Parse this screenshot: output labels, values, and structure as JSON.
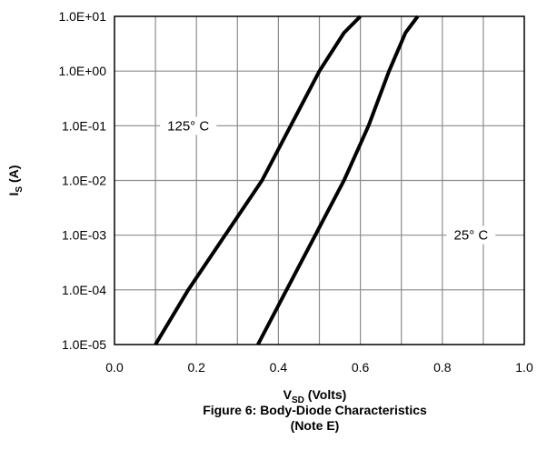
{
  "chart_data": {
    "type": "line",
    "title": "",
    "caption_lines": [
      "Figure 6: Body-Diode Characteristics",
      "(Note E)"
    ],
    "xlabel": {
      "main": "V",
      "sub": "SD",
      "rest": " (Volts)"
    },
    "ylabel": {
      "main": "I",
      "sub": "S",
      "rest": " (A)"
    },
    "xlim": [
      0.0,
      1.0
    ],
    "y_scale": "log",
    "ylim": [
      1e-05,
      10
    ],
    "x_ticks": [
      0.0,
      0.2,
      0.4,
      0.6,
      0.8,
      1.0
    ],
    "x_tick_labels": [
      "0.0",
      "0.2",
      "0.4",
      "0.6",
      "0.8",
      "1.0"
    ],
    "y_ticks": [
      1e-05,
      0.0001,
      0.001,
      0.01,
      0.1,
      1,
      10
    ],
    "y_tick_labels": [
      "1.0E-05",
      "1.0E-04",
      "1.0E-03",
      "1.0E-02",
      "1.0E-01",
      "1.0E+00",
      "1.0E+01"
    ],
    "x_minor_gridlines": [
      0.1,
      0.3,
      0.5,
      0.7,
      0.9
    ],
    "grid": true,
    "legend": "none",
    "series": [
      {
        "name": "125° C",
        "color": "#000000",
        "x": [
          0.1,
          0.18,
          0.27,
          0.36,
          0.43,
          0.5,
          0.56,
          0.6
        ],
        "y": [
          1e-05,
          0.0001,
          0.001,
          0.01,
          0.1,
          1,
          5,
          10
        ]
      },
      {
        "name": "25° C",
        "color": "#000000",
        "x": [
          0.35,
          0.42,
          0.49,
          0.56,
          0.62,
          0.67,
          0.71,
          0.74
        ],
        "y": [
          1e-05,
          0.0001,
          0.001,
          0.01,
          0.1,
          1,
          5,
          10
        ]
      }
    ],
    "annotations": [
      {
        "series": "125° C",
        "text": "125° C",
        "x": 0.18,
        "y": 0.1
      },
      {
        "series": "25° C",
        "text": "25° C",
        "x": 0.87,
        "y": 0.001
      }
    ]
  }
}
